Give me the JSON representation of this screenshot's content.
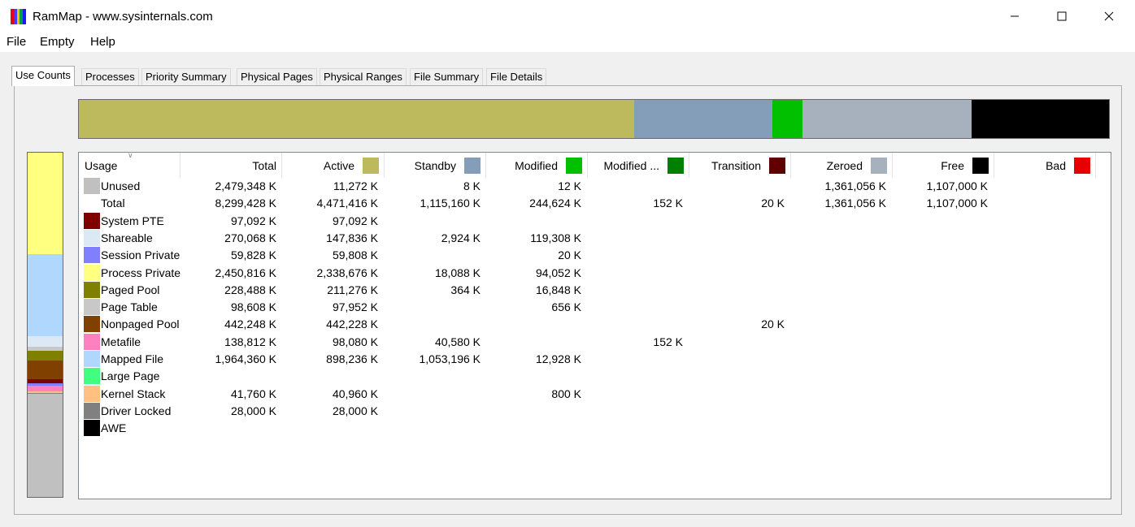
{
  "window": {
    "title": "RamMap - www.sysinternals.com",
    "icon_name": "rammap-app-icon",
    "icon_colors": [
      "#e8001c",
      "#4a3aff",
      "#f7c000",
      "#00a040",
      "#1a1aff"
    ]
  },
  "menu": [
    "File",
    "Empty",
    "Help"
  ],
  "tabs": [
    "Use Counts",
    "Processes",
    "Priority Summary",
    "Physical Pages",
    "Physical Ranges",
    "File Summary",
    "File Details"
  ],
  "active_tab": "Use Counts",
  "columns": [
    {
      "label": "Usage",
      "color": null
    },
    {
      "label": "Total",
      "color": null
    },
    {
      "label": "Active",
      "color": "#bdba5e"
    },
    {
      "label": "Standby",
      "color": "#849eba"
    },
    {
      "label": "Modified",
      "color": "#00c000"
    },
    {
      "label": "Modified ...",
      "color": "#008000"
    },
    {
      "label": "Transition",
      "color": "#600000"
    },
    {
      "label": "Zeroed",
      "color": "#a6b1bd"
    },
    {
      "label": "Free",
      "color": "#000000"
    },
    {
      "label": "Bad",
      "color": "#e80000"
    }
  ],
  "rows": [
    {
      "name": "Unused",
      "color": "#c0c0c0",
      "values": [
        "2,479,348 K",
        "11,272 K",
        "8 K",
        "12 K",
        "",
        "",
        "1,361,056 K",
        "1,107,000 K",
        ""
      ]
    },
    {
      "name": "Total",
      "color": null,
      "values": [
        "8,299,428 K",
        "4,471,416 K",
        "1,115,160 K",
        "244,624 K",
        "152 K",
        "20 K",
        "1,361,056 K",
        "1,107,000 K",
        ""
      ]
    },
    {
      "name": "System PTE",
      "color": "#800000",
      "values": [
        "97,092 K",
        "97,092 K",
        "",
        "",
        "",
        "",
        "",
        "",
        ""
      ]
    },
    {
      "name": "Shareable",
      "color": "#dde8f5",
      "values": [
        "270,068 K",
        "147,836 K",
        "2,924 K",
        "119,308 K",
        "",
        "",
        "",
        "",
        ""
      ]
    },
    {
      "name": "Session Private",
      "color": "#8080ff",
      "values": [
        "59,828 K",
        "59,808 K",
        "",
        "20 K",
        "",
        "",
        "",
        "",
        ""
      ]
    },
    {
      "name": "Process Private",
      "color": "#ffff80",
      "values": [
        "2,450,816 K",
        "2,338,676 K",
        "18,088 K",
        "94,052 K",
        "",
        "",
        "",
        "",
        ""
      ]
    },
    {
      "name": "Paged Pool",
      "color": "#808000",
      "values": [
        "228,488 K",
        "211,276 K",
        "364 K",
        "16,848 K",
        "",
        "",
        "",
        "",
        ""
      ]
    },
    {
      "name": "Page Table",
      "color": "#c8c8c8",
      "values": [
        "98,608 K",
        "97,952 K",
        "",
        "656 K",
        "",
        "",
        "",
        "",
        ""
      ]
    },
    {
      "name": "Nonpaged Pool",
      "color": "#804000",
      "values": [
        "442,248 K",
        "442,228 K",
        "",
        "",
        "",
        "20 K",
        "",
        "",
        ""
      ]
    },
    {
      "name": "Metafile",
      "color": "#ff80c0",
      "values": [
        "138,812 K",
        "98,080 K",
        "40,580 K",
        "",
        "152 K",
        "",
        "",
        "",
        ""
      ]
    },
    {
      "name": "Mapped File",
      "color": "#b0d8ff",
      "values": [
        "1,964,360 K",
        "898,236 K",
        "1,053,196 K",
        "12,928 K",
        "",
        "",
        "",
        "",
        ""
      ]
    },
    {
      "name": "Large Page",
      "color": "#40ff80",
      "values": [
        "",
        "",
        "",
        "",
        "",
        "",
        "",
        "",
        ""
      ]
    },
    {
      "name": "Kernel Stack",
      "color": "#ffc080",
      "values": [
        "41,760 K",
        "40,960 K",
        "",
        "800 K",
        "",
        "",
        "",
        "",
        ""
      ]
    },
    {
      "name": "Driver Locked",
      "color": "#808080",
      "values": [
        "28,000 K",
        "28,000 K",
        "",
        "",
        "",
        "",
        "",
        "",
        ""
      ]
    },
    {
      "name": "AWE",
      "color": "#000000",
      "values": [
        "",
        "",
        "",
        "",
        "",
        "",
        "",
        "",
        ""
      ]
    }
  ],
  "summary_bar": [
    {
      "name": "Active",
      "fraction": 0.5388,
      "color": "#bdba5e"
    },
    {
      "name": "Standby",
      "fraction": 0.1344,
      "color": "#849eba"
    },
    {
      "name": "Modified",
      "fraction": 0.0295,
      "color": "#00c000"
    },
    {
      "name": "Zeroed",
      "fraction": 0.164,
      "color": "#a6b1bd"
    },
    {
      "name": "Free",
      "fraction": 0.1333,
      "color": "#000000"
    }
  ],
  "usage_column_bar": [
    {
      "name": "Process Private",
      "fraction": 0.2953,
      "color": "#ffff80"
    },
    {
      "name": "Mapped File",
      "fraction": 0.2367,
      "color": "#b0d8ff"
    },
    {
      "name": "Shareable",
      "fraction": 0.0325,
      "color": "#dde8f5"
    },
    {
      "name": "Page Table",
      "fraction": 0.0119,
      "color": "#c8c8c8"
    },
    {
      "name": "Paged Pool",
      "fraction": 0.0275,
      "color": "#808000"
    },
    {
      "name": "Nonpaged Pool",
      "fraction": 0.0533,
      "color": "#804000"
    },
    {
      "name": "System PTE",
      "fraction": 0.0117,
      "color": "#800000"
    },
    {
      "name": "Session Private",
      "fraction": 0.0072,
      "color": "#8080ff"
    },
    {
      "name": "Metafile",
      "fraction": 0.0167,
      "color": "#ff80c0"
    },
    {
      "name": "Kernel Stack",
      "fraction": 0.005,
      "color": "#ffc080"
    },
    {
      "name": "Driver Locked",
      "fraction": 0.0034,
      "color": "#808080"
    },
    {
      "name": "Unused",
      "fraction": 0.2987,
      "color": "#c0c0c0"
    }
  ]
}
